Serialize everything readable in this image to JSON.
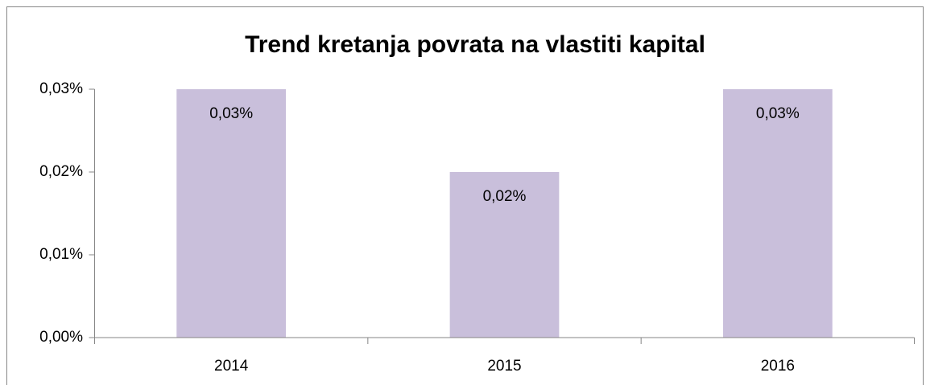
{
  "chart_data": {
    "type": "bar",
    "title": "Trend kretanja povrata na vlastiti kapital",
    "categories": [
      "2014",
      "2015",
      "2016"
    ],
    "values": [
      0.03,
      0.02,
      0.03
    ],
    "value_labels": [
      "0,03%",
      "0,02%",
      "0,03%"
    ],
    "color": "#c9bfdb",
    "ylim": [
      0,
      0.03
    ],
    "yticks": [
      {
        "value": 0,
        "label": "0,00%"
      },
      {
        "value": 0.01,
        "label": "0,01%"
      },
      {
        "value": 0.02,
        "label": "0,02%"
      },
      {
        "value": 0.03,
        "label": "0,03%"
      }
    ],
    "grid": false
  }
}
